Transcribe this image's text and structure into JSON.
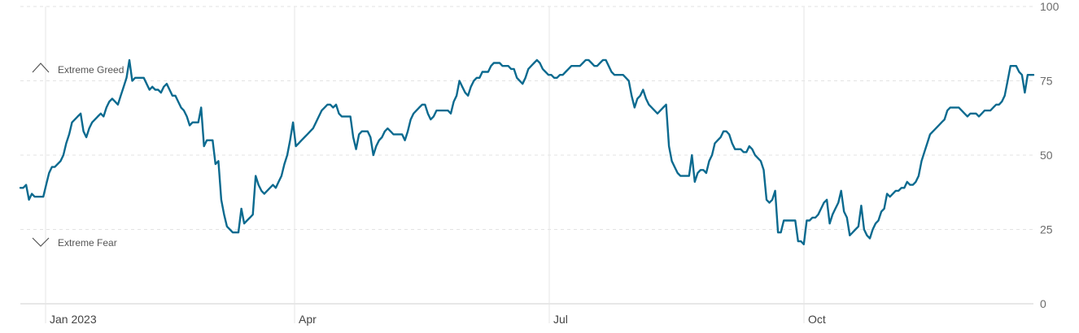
{
  "chart_data": {
    "type": "line",
    "title": "",
    "xlabel": "",
    "ylabel": "",
    "ylim": [
      0,
      100
    ],
    "y_ticks": [
      "100",
      "75",
      "50",
      "25",
      "0"
    ],
    "x_ticks": [
      "Jan 2023",
      "Apr",
      "Jul",
      "Oct"
    ],
    "grid": true,
    "line_color": "#0b6a8f",
    "annotations": {
      "greed_label": "Extreme Greed",
      "fear_label": "Extreme Fear",
      "greed_level": 80,
      "fear_level": 20
    },
    "series": [
      {
        "values": [
          39,
          39,
          40,
          35,
          37,
          36,
          36,
          36,
          36,
          40,
          44,
          46,
          46,
          47,
          48,
          50,
          54,
          57,
          61,
          62,
          63,
          64,
          58,
          56,
          59,
          61,
          62,
          63,
          64,
          63,
          66,
          68,
          69,
          68,
          67,
          70,
          73,
          76,
          82,
          75,
          76,
          76,
          76,
          76,
          74,
          72,
          73,
          72,
          72,
          71,
          73,
          74,
          72,
          70,
          70,
          68,
          66,
          65,
          63,
          60,
          61,
          61,
          61,
          66,
          53,
          55,
          55,
          55,
          47,
          48,
          35,
          30,
          26,
          25,
          24,
          24,
          24,
          32,
          27,
          28,
          29,
          30,
          43,
          40,
          38,
          37,
          38,
          39,
          40,
          39,
          41,
          43,
          47,
          50,
          55,
          61,
          53,
          54,
          55,
          56,
          57,
          58,
          59,
          61,
          63,
          65,
          66,
          67,
          67,
          66,
          67,
          64,
          63,
          63,
          63,
          63,
          56,
          52,
          57,
          58,
          58,
          58,
          56,
          50,
          53,
          55,
          56,
          58,
          59,
          58,
          57,
          57,
          57,
          57,
          55,
          58,
          62,
          64,
          65,
          66,
          67,
          67,
          64,
          62,
          63,
          65,
          65,
          65,
          65,
          65,
          64,
          68,
          70,
          75,
          73,
          71,
          70,
          73,
          75,
          76,
          76,
          78,
          78,
          78,
          80,
          81,
          81,
          81,
          80,
          80,
          80,
          79,
          79,
          76,
          75,
          74,
          76,
          79,
          80,
          81,
          82,
          81,
          79,
          78,
          77,
          77,
          76,
          76,
          77,
          77,
          78,
          79,
          80,
          80,
          80,
          80,
          81,
          82,
          82,
          81,
          80,
          80,
          81,
          82,
          82,
          80,
          78,
          77,
          77,
          77,
          77,
          76,
          75,
          70,
          66,
          69,
          70,
          72,
          69,
          67,
          66,
          65,
          64,
          65,
          66,
          67,
          53,
          48,
          46,
          44,
          43,
          43,
          43,
          43,
          50,
          41,
          44,
          45,
          45,
          44,
          48,
          50,
          54,
          55,
          56,
          58,
          58,
          57,
          54,
          52,
          52,
          52,
          51,
          51,
          53,
          52,
          50,
          49,
          48,
          45,
          35,
          34,
          35,
          38,
          24,
          24,
          28,
          28,
          28,
          28,
          28,
          21,
          21,
          20,
          28,
          28,
          29,
          29,
          30,
          32,
          34,
          35,
          27,
          30,
          32,
          34,
          38,
          31,
          29,
          23,
          24,
          25,
          26,
          33,
          25,
          23,
          22,
          25,
          27,
          28,
          31,
          32,
          37,
          36,
          37,
          38,
          38,
          39,
          39,
          41,
          40,
          40,
          41,
          43,
          48,
          51,
          54,
          57,
          58,
          59,
          60,
          61,
          62,
          65,
          66,
          66,
          66,
          66,
          65,
          64,
          63,
          64,
          64,
          64,
          63,
          64,
          65,
          65,
          65,
          66,
          67,
          67,
          68,
          70,
          75,
          80,
          80,
          80,
          78,
          77,
          71,
          77,
          77,
          77
        ]
      }
    ]
  }
}
